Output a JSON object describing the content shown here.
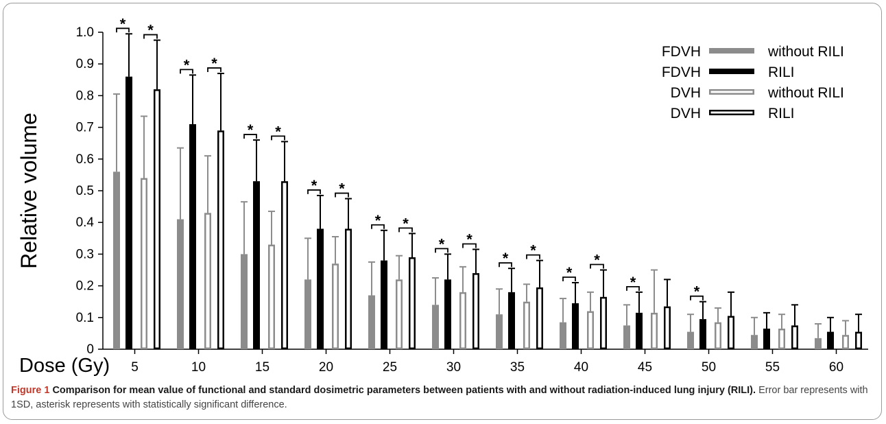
{
  "chart_data": {
    "type": "bar",
    "ylabel": "Relative volume",
    "xlabel": "Dose (Gy)",
    "ylim": [
      0,
      1.0
    ],
    "yticks": [
      "0",
      "0.1",
      "0.2",
      "0.3",
      "0.4",
      "0.5",
      "0.6",
      "0.7",
      "0.8",
      "0.9",
      "1.0"
    ],
    "categories": [
      "5",
      "10",
      "15",
      "20",
      "25",
      "30",
      "35",
      "40",
      "45",
      "50",
      "55",
      "60"
    ],
    "legend_position": "top-right",
    "series": [
      {
        "name": "FDVH without RILI",
        "legend_prefix": "FDVH",
        "legend_label": "without RILI",
        "style": "filled",
        "color": "#8c8c8c",
        "values": [
          0.56,
          0.41,
          0.3,
          0.22,
          0.17,
          0.14,
          0.11,
          0.085,
          0.075,
          0.055,
          0.045,
          0.035
        ],
        "error": [
          0.245,
          0.225,
          0.165,
          0.13,
          0.105,
          0.085,
          0.08,
          0.075,
          0.065,
          0.055,
          0.055,
          0.045
        ]
      },
      {
        "name": "FDVH RILI",
        "legend_prefix": "FDVH",
        "legend_label": "RILI",
        "style": "filled",
        "color": "#000000",
        "values": [
          0.86,
          0.71,
          0.53,
          0.38,
          0.28,
          0.22,
          0.18,
          0.145,
          0.115,
          0.095,
          0.065,
          0.055
        ],
        "error": [
          0.135,
          0.155,
          0.13,
          0.105,
          0.095,
          0.08,
          0.075,
          0.065,
          0.065,
          0.055,
          0.05,
          0.045
        ]
      },
      {
        "name": "DVH without RILI",
        "legend_prefix": "DVH",
        "legend_label": "without RILI",
        "style": "outline",
        "color": "#8c8c8c",
        "values": [
          0.54,
          0.43,
          0.33,
          0.27,
          0.22,
          0.18,
          0.15,
          0.12,
          0.115,
          0.085,
          0.065,
          0.045
        ],
        "error": [
          0.195,
          0.18,
          0.105,
          0.085,
          0.075,
          0.08,
          0.055,
          0.06,
          0.135,
          0.045,
          0.045,
          0.045
        ]
      },
      {
        "name": "DVH RILI",
        "legend_prefix": "DVH",
        "legend_label": "RILI",
        "style": "outline",
        "color": "#000000",
        "values": [
          0.82,
          0.69,
          0.53,
          0.38,
          0.29,
          0.24,
          0.195,
          0.165,
          0.135,
          0.105,
          0.075,
          0.055
        ],
        "error": [
          0.155,
          0.18,
          0.125,
          0.095,
          0.075,
          0.075,
          0.085,
          0.085,
          0.085,
          0.075,
          0.065,
          0.055
        ]
      }
    ],
    "significance": [
      {
        "category": "5",
        "pairs": [
          "FDVH",
          "DVH"
        ]
      },
      {
        "category": "10",
        "pairs": [
          "FDVH",
          "DVH"
        ]
      },
      {
        "category": "15",
        "pairs": [
          "FDVH",
          "DVH"
        ]
      },
      {
        "category": "20",
        "pairs": [
          "FDVH",
          "DVH"
        ]
      },
      {
        "category": "25",
        "pairs": [
          "FDVH",
          "DVH"
        ]
      },
      {
        "category": "30",
        "pairs": [
          "FDVH",
          "DVH"
        ]
      },
      {
        "category": "35",
        "pairs": [
          "FDVH",
          "DVH"
        ]
      },
      {
        "category": "40",
        "pairs": [
          "FDVH",
          "DVH"
        ]
      },
      {
        "category": "45",
        "pairs": [
          "FDVH"
        ]
      },
      {
        "category": "50",
        "pairs": [
          "FDVH"
        ]
      }
    ],
    "significance_marker": "*"
  },
  "caption": {
    "label": "Figure 1",
    "title": "Comparison for mean value of functional and standard dosimetric parameters between patients with and without radiation-induced lung injury (RILI).",
    "text": "Error bar represents with 1SD, asterisk represents with statistically significant difference."
  }
}
